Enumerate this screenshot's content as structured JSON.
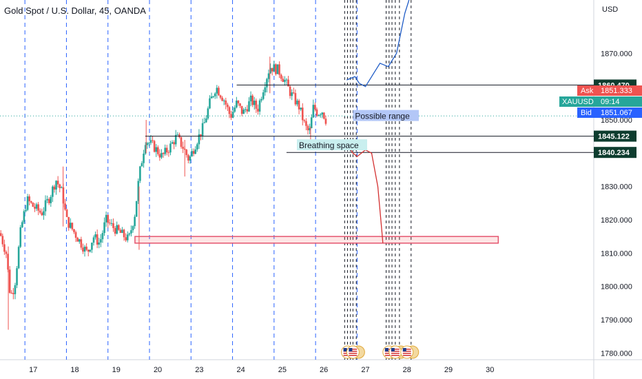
{
  "header": {
    "title": "Gold Spot / U.S. Dollar, 45, OANDA",
    "currency": "USD"
  },
  "chart_data": {
    "type": "candlestick",
    "symbol": "XAUUSD",
    "interval": "45",
    "ylim": [
      1778,
      1886
    ],
    "xlim": [
      16.2,
      30.5
    ],
    "y_ticks": [
      1780,
      1790,
      1800,
      1810,
      1820,
      1830,
      1840,
      1850,
      1860,
      1870
    ],
    "y_tick_labels": [
      "1780.000",
      "1790.000",
      "1800.000",
      "1810.000",
      "1820.000",
      "1830.000",
      "1840.000",
      "1850.000",
      "1860.000",
      "1870.000"
    ],
    "x_ticks": [
      17,
      18,
      19,
      20,
      23,
      24,
      25,
      26,
      27,
      28,
      29,
      30
    ],
    "x_tick_labels": [
      "17",
      "18",
      "19",
      "20",
      "23",
      "24",
      "25",
      "26",
      "27",
      "28",
      "29",
      "30"
    ],
    "x_positions": [
      17,
      18,
      19,
      20,
      21,
      22,
      23,
      24,
      25,
      26,
      27,
      28
    ],
    "session_dividers": [
      16.8,
      17.8,
      18.8,
      19.8,
      20.8,
      21.8,
      22.8,
      23.8,
      24.8
    ],
    "ohlc_anchors": [
      [
        16.2,
        1816
      ],
      [
        16.35,
        1810
      ],
      [
        16.45,
        1797
      ],
      [
        16.55,
        1800
      ],
      [
        16.7,
        1817
      ],
      [
        16.85,
        1826
      ],
      [
        17.0,
        1824
      ],
      [
        17.2,
        1822
      ],
      [
        17.4,
        1827
      ],
      [
        17.55,
        1832
      ],
      [
        17.7,
        1828
      ],
      [
        17.8,
        1820
      ],
      [
        17.95,
        1817
      ],
      [
        18.15,
        1813
      ],
      [
        18.3,
        1810
      ],
      [
        18.45,
        1815
      ],
      [
        18.6,
        1813
      ],
      [
        18.75,
        1820
      ],
      [
        18.9,
        1818
      ],
      [
        19.1,
        1816
      ],
      [
        19.3,
        1814
      ],
      [
        19.45,
        1822
      ],
      [
        19.55,
        1833
      ],
      [
        19.7,
        1844
      ],
      [
        19.9,
        1842
      ],
      [
        20.1,
        1839
      ],
      [
        20.3,
        1842
      ],
      [
        20.45,
        1845
      ],
      [
        20.6,
        1842
      ],
      [
        20.75,
        1838
      ],
      [
        20.95,
        1844
      ],
      [
        21.1,
        1848
      ],
      [
        21.25,
        1855
      ],
      [
        21.4,
        1860
      ],
      [
        21.6,
        1856
      ],
      [
        21.75,
        1851
      ],
      [
        21.9,
        1855
      ],
      [
        22.05,
        1852
      ],
      [
        22.25,
        1856
      ],
      [
        22.4,
        1853
      ],
      [
        22.55,
        1860
      ],
      [
        22.7,
        1866
      ],
      [
        22.9,
        1865
      ],
      [
        23.05,
        1862
      ],
      [
        23.2,
        1858
      ],
      [
        23.4,
        1854
      ],
      [
        23.55,
        1848
      ],
      [
        23.65,
        1846
      ],
      [
        23.75,
        1854
      ],
      [
        23.85,
        1852
      ],
      [
        23.95,
        1853
      ],
      [
        24.05,
        1850
      ]
    ],
    "wicks": [
      {
        "x": 16.4,
        "low": 1787,
        "high": 1812
      },
      {
        "x": 17.72,
        "low": 1818,
        "high": 1836
      },
      {
        "x": 19.55,
        "low": 1811,
        "high": 1830
      },
      {
        "x": 19.72,
        "low": 1840,
        "high": 1850
      },
      {
        "x": 20.65,
        "low": 1833,
        "high": 1844
      },
      {
        "x": 22.7,
        "low": 1858,
        "high": 1869
      },
      {
        "x": 23.68,
        "low": 1843,
        "high": 1848
      }
    ],
    "horizontal_levels": [
      {
        "price": 1860.47,
        "label": "1860.470",
        "x_start": 21.9,
        "color": "#131722"
      },
      {
        "price": 1845.122,
        "label": "1845.122",
        "x_start": 19.7,
        "color": "#131722"
      },
      {
        "price": 1840.234,
        "label": "1840.234",
        "x_start": 23.1,
        "color": "#131722"
      }
    ],
    "support_zone": {
      "low": 1813,
      "high": 1815,
      "x_start": 19.45,
      "x_end": 28.2,
      "color": "#e5546e"
    },
    "current_price_line": 1851.2,
    "annotations": [
      {
        "text": "Possible range",
        "x": 24.7,
        "y": 1850.5,
        "bg": "#b3c7f7"
      },
      {
        "text": "Breathing space",
        "x": 23.35,
        "y": 1841.7,
        "bg": "#c9efef"
      }
    ],
    "projection_up": [
      [
        24.55,
        1862
      ],
      [
        24.75,
        1863
      ],
      [
        24.85,
        1861
      ],
      [
        25.0,
        1860
      ],
      [
        25.15,
        1863
      ],
      [
        25.35,
        1867
      ],
      [
        25.55,
        1866
      ],
      [
        25.75,
        1870
      ],
      [
        25.95,
        1882
      ],
      [
        26.05,
        1886
      ]
    ],
    "projection_down": [
      [
        24.6,
        1842
      ],
      [
        24.7,
        1840
      ],
      [
        24.8,
        1839
      ],
      [
        25.0,
        1841
      ],
      [
        25.15,
        1840
      ],
      [
        25.3,
        1830
      ],
      [
        25.4,
        1816
      ],
      [
        25.42,
        1813
      ]
    ],
    "event_lines": [
      24.5,
      24.57,
      24.64,
      24.7,
      24.78,
      25.5,
      25.57,
      25.64,
      25.72,
      25.82,
      26.1
    ],
    "event_flags_x": [
      24.57,
      24.7,
      25.57,
      25.72,
      26.0
    ],
    "price_labels": {
      "ask_text": "Ask",
      "ask": "1851.333",
      "symbol": "XAUUSD",
      "countdown": "09:14",
      "bid_text": "Bid",
      "bid": "1851.067"
    },
    "colors": {
      "up": "#26a69a",
      "down": "#ef5350",
      "grid": "#2962ff",
      "projection_up": "#1e5bc6",
      "projection_down": "#d32f2f"
    }
  }
}
